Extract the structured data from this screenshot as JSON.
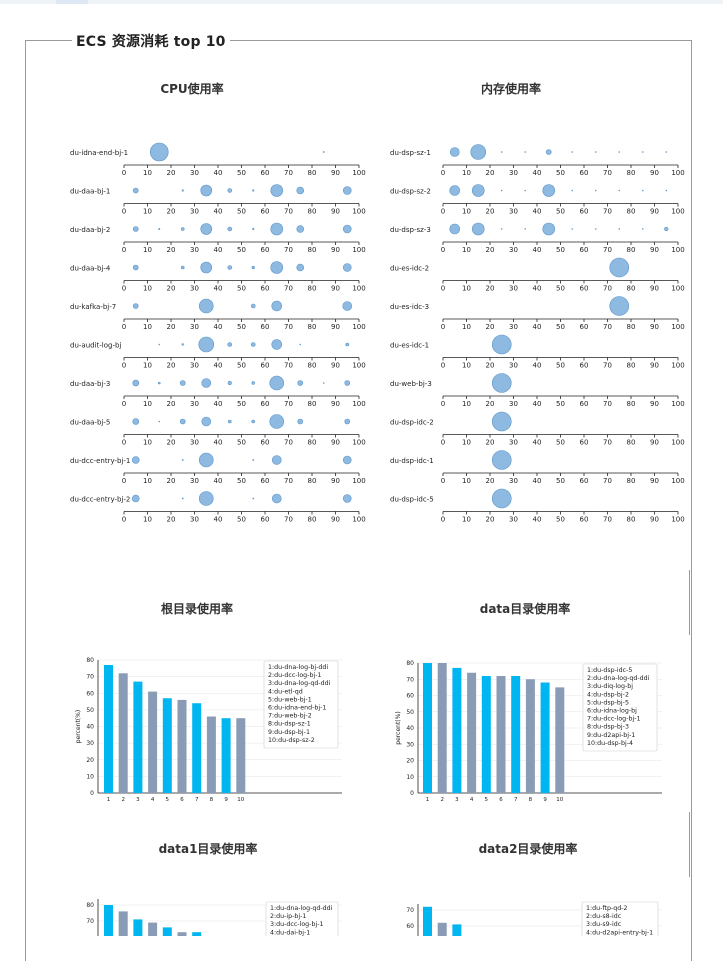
{
  "dashboard_title": "ECS 资源消耗 top 10",
  "panels": {
    "cpu": "CPU使用率",
    "mem": "内存使用率",
    "root": "根目录使用率",
    "data": "data目录使用率",
    "data1": "data1目录使用率",
    "data2": "data2目录使用率"
  },
  "chart_data": [
    {
      "type": "scatter",
      "panel": "CPU使用率",
      "x_ticks": [
        0,
        10,
        20,
        30,
        40,
        50,
        60,
        70,
        80,
        90,
        100
      ],
      "xlim": [
        0,
        100
      ],
      "colors": {
        "marker": "#7aaedc"
      },
      "rows": [
        {
          "label": "du-idna-end-bj-1",
          "points": [
            {
              "x": 15,
              "s": 9
            },
            {
              "x": 85,
              "s": 0.6
            }
          ]
        },
        {
          "label": "du-daa-bj-1",
          "points": [
            {
              "x": 5,
              "s": 2.5
            },
            {
              "x": 25,
              "s": 0.8
            },
            {
              "x": 35,
              "s": 5.5
            },
            {
              "x": 45,
              "s": 2
            },
            {
              "x": 55,
              "s": 0.8
            },
            {
              "x": 65,
              "s": 6
            },
            {
              "x": 75,
              "s": 3.5
            },
            {
              "x": 95,
              "s": 4
            }
          ]
        },
        {
          "label": "du-daa-bj-2",
          "points": [
            {
              "x": 5,
              "s": 2.5
            },
            {
              "x": 15,
              "s": 0.7
            },
            {
              "x": 25,
              "s": 1.5
            },
            {
              "x": 35,
              "s": 5.5
            },
            {
              "x": 45,
              "s": 2
            },
            {
              "x": 55,
              "s": 0.8
            },
            {
              "x": 65,
              "s": 6
            },
            {
              "x": 75,
              "s": 3.5
            },
            {
              "x": 95,
              "s": 4
            }
          ]
        },
        {
          "label": "du-daa-bj-4",
          "points": [
            {
              "x": 5,
              "s": 2.5
            },
            {
              "x": 25,
              "s": 1.5
            },
            {
              "x": 35,
              "s": 5.5
            },
            {
              "x": 45,
              "s": 2
            },
            {
              "x": 55,
              "s": 1.3
            },
            {
              "x": 65,
              "s": 6
            },
            {
              "x": 75,
              "s": 3.5
            },
            {
              "x": 95,
              "s": 4
            }
          ]
        },
        {
          "label": "du-kafka-bj-7",
          "points": [
            {
              "x": 5,
              "s": 2.5
            },
            {
              "x": 35,
              "s": 7
            },
            {
              "x": 55,
              "s": 2
            },
            {
              "x": 65,
              "s": 5
            },
            {
              "x": 95,
              "s": 4.5
            }
          ]
        },
        {
          "label": "du-audit-log-bj",
          "points": [
            {
              "x": 15,
              "s": 0.5
            },
            {
              "x": 25,
              "s": 0.9
            },
            {
              "x": 35,
              "s": 7.5
            },
            {
              "x": 45,
              "s": 2
            },
            {
              "x": 55,
              "s": 2
            },
            {
              "x": 65,
              "s": 5
            },
            {
              "x": 75,
              "s": 0.5
            },
            {
              "x": 95,
              "s": 1.5
            }
          ]
        },
        {
          "label": "du-daa-bj-3",
          "points": [
            {
              "x": 5,
              "s": 3
            },
            {
              "x": 15,
              "s": 1
            },
            {
              "x": 25,
              "s": 2.5
            },
            {
              "x": 35,
              "s": 4.5
            },
            {
              "x": 45,
              "s": 1.8
            },
            {
              "x": 55,
              "s": 1.4
            },
            {
              "x": 65,
              "s": 7
            },
            {
              "x": 75,
              "s": 2.5
            },
            {
              "x": 85,
              "s": 0.5
            },
            {
              "x": 95,
              "s": 2.5
            }
          ]
        },
        {
          "label": "du-daa-bj-5",
          "points": [
            {
              "x": 5,
              "s": 3
            },
            {
              "x": 15,
              "s": 0.5
            },
            {
              "x": 25,
              "s": 2.5
            },
            {
              "x": 35,
              "s": 4.5
            },
            {
              "x": 45,
              "s": 1.5
            },
            {
              "x": 55,
              "s": 1.5
            },
            {
              "x": 65,
              "s": 7
            },
            {
              "x": 75,
              "s": 2.5
            },
            {
              "x": 95,
              "s": 2.5
            }
          ]
        },
        {
          "label": "du-dcc-entry-bj-1",
          "points": [
            {
              "x": 5,
              "s": 3.5
            },
            {
              "x": 25,
              "s": 0.6
            },
            {
              "x": 35,
              "s": 7
            },
            {
              "x": 55,
              "s": 0.6
            },
            {
              "x": 65,
              "s": 4.5
            },
            {
              "x": 95,
              "s": 4
            }
          ]
        },
        {
          "label": "du-dcc-entry-bj-2",
          "points": [
            {
              "x": 5,
              "s": 3.5
            },
            {
              "x": 25,
              "s": 0.6
            },
            {
              "x": 35,
              "s": 7
            },
            {
              "x": 55,
              "s": 0.6
            },
            {
              "x": 65,
              "s": 4.5
            },
            {
              "x": 95,
              "s": 4
            }
          ]
        }
      ]
    },
    {
      "type": "scatter",
      "panel": "内存使用率",
      "x_ticks": [
        0,
        10,
        20,
        30,
        40,
        50,
        60,
        70,
        80,
        90,
        100
      ],
      "xlim": [
        0,
        100
      ],
      "colors": {
        "marker": "#7aaedc"
      },
      "rows": [
        {
          "label": "du-dsp-sz-1",
          "points": [
            {
              "x": 5,
              "s": 4.5
            },
            {
              "x": 15,
              "s": 7.5
            },
            {
              "x": 25,
              "s": 0.5
            },
            {
              "x": 35,
              "s": 0.5
            },
            {
              "x": 45,
              "s": 2.5
            },
            {
              "x": 55,
              "s": 0.5
            },
            {
              "x": 65,
              "s": 0.5
            },
            {
              "x": 75,
              "s": 0.5
            },
            {
              "x": 85,
              "s": 0.5
            },
            {
              "x": 95,
              "s": 0.5
            }
          ]
        },
        {
          "label": "du-dsp-sz-2",
          "points": [
            {
              "x": 5,
              "s": 5
            },
            {
              "x": 15,
              "s": 6
            },
            {
              "x": 25,
              "s": 0.5
            },
            {
              "x": 35,
              "s": 0.5
            },
            {
              "x": 45,
              "s": 6
            },
            {
              "x": 55,
              "s": 0.5
            },
            {
              "x": 65,
              "s": 0.5
            },
            {
              "x": 75,
              "s": 0.5
            },
            {
              "x": 85,
              "s": 0.5
            },
            {
              "x": 95,
              "s": 0.5
            }
          ]
        },
        {
          "label": "du-dsp-sz-3",
          "points": [
            {
              "x": 5,
              "s": 5
            },
            {
              "x": 15,
              "s": 6
            },
            {
              "x": 25,
              "s": 0.5
            },
            {
              "x": 35,
              "s": 0.5
            },
            {
              "x": 45,
              "s": 6
            },
            {
              "x": 55,
              "s": 0.5
            },
            {
              "x": 65,
              "s": 0.5
            },
            {
              "x": 75,
              "s": 0.5
            },
            {
              "x": 85,
              "s": 0.5
            },
            {
              "x": 95,
              "s": 1.8
            }
          ]
        },
        {
          "label": "du-es-idc-2",
          "points": [
            {
              "x": 75,
              "s": 9.5
            }
          ]
        },
        {
          "label": "du-es-idc-3",
          "points": [
            {
              "x": 75,
              "s": 9.5
            }
          ]
        },
        {
          "label": "du-es-idc-1",
          "points": [
            {
              "x": 25,
              "s": 9.5
            }
          ]
        },
        {
          "label": "du-web-bj-3",
          "points": [
            {
              "x": 25,
              "s": 9.5
            }
          ]
        },
        {
          "label": "du-dsp-idc-2",
          "points": [
            {
              "x": 25,
              "s": 9.5
            }
          ]
        },
        {
          "label": "du-dsp-idc-1",
          "points": [
            {
              "x": 25,
              "s": 9.5
            }
          ]
        },
        {
          "label": "du-dsp-idc-5",
          "points": [
            {
              "x": 25,
              "s": 9.5
            }
          ]
        }
      ]
    },
    {
      "type": "bar",
      "panel": "根目录使用率",
      "ylabel": "percent(%)",
      "ylim": [
        0,
        80
      ],
      "y_ticks": [
        0,
        10,
        20,
        30,
        40,
        50,
        60,
        70,
        80
      ],
      "categories": [
        "1",
        "2",
        "3",
        "4",
        "5",
        "6",
        "7",
        "8",
        "9",
        "10"
      ],
      "values": [
        77,
        72,
        67,
        61,
        57,
        56,
        54,
        46,
        45,
        45
      ],
      "colors": {
        "odd": "#00b6f0",
        "even": "#8a9bb5"
      },
      "legend": [
        "1:du-dna-log-bj-ddi",
        "2:du-dcc-log-bj-1",
        "3:du-dna-log-qd-ddi",
        "4:du-etl-qd",
        "5:du-web-bj-1",
        "6:du-idna-end-bj-1",
        "7:du-web-bj-2",
        "8:du-dsp-sz-1",
        "9:du-dsp-bj-1",
        "10:du-dsp-sz-2"
      ]
    },
    {
      "type": "bar",
      "panel": "data目录使用率",
      "ylabel": "percent(%)",
      "ylim": [
        0,
        80
      ],
      "y_ticks": [
        0,
        10,
        20,
        30,
        40,
        50,
        60,
        70,
        80
      ],
      "categories": [
        "1",
        "2",
        "3",
        "4",
        "5",
        "6",
        "7",
        "8",
        "9",
        "10"
      ],
      "values": [
        80,
        80,
        77,
        74,
        72,
        72,
        72,
        70,
        68,
        65
      ],
      "colors": {
        "odd": "#00b6f0",
        "even": "#8a9bb5"
      },
      "legend": [
        "1:du-dsp-idc-5",
        "2:du-dna-log-qd-ddi",
        "3:du-diq-log-bj",
        "4:du-dsp-bj-2",
        "5:du-dsp-bj-5",
        "6:du-idna-log-bj",
        "7:du-dcc-log-bj-1",
        "8:du-dsp-bj-3",
        "9:du-d2api-bj-1",
        "10:du-dsp-bj-4"
      ]
    },
    {
      "type": "bar",
      "panel": "data1目录使用率",
      "y_ticks": [
        80,
        70
      ],
      "visible_values": [
        80,
        76,
        71,
        69,
        66,
        63,
        63
      ],
      "colors": {
        "odd": "#00b6f0",
        "even": "#8a9bb5"
      },
      "legend": [
        "1:du-dna-log-qd-ddi",
        "2:du-ip-bj-1",
        "3:du-dcc-log-bj-1",
        "4:du-dai-bj-1"
      ]
    },
    {
      "type": "bar",
      "panel": "data2目录使用率",
      "y_ticks": [
        70,
        60
      ],
      "visible_values": [
        72,
        62,
        61
      ],
      "colors": {
        "odd": "#00b6f0",
        "even": "#8a9bb5"
      },
      "legend": [
        "1:du-ftp-qd-2",
        "2:du-s8-idc",
        "3:du-s9-idc",
        "4:du-d2api-entry-bj-1"
      ]
    }
  ]
}
